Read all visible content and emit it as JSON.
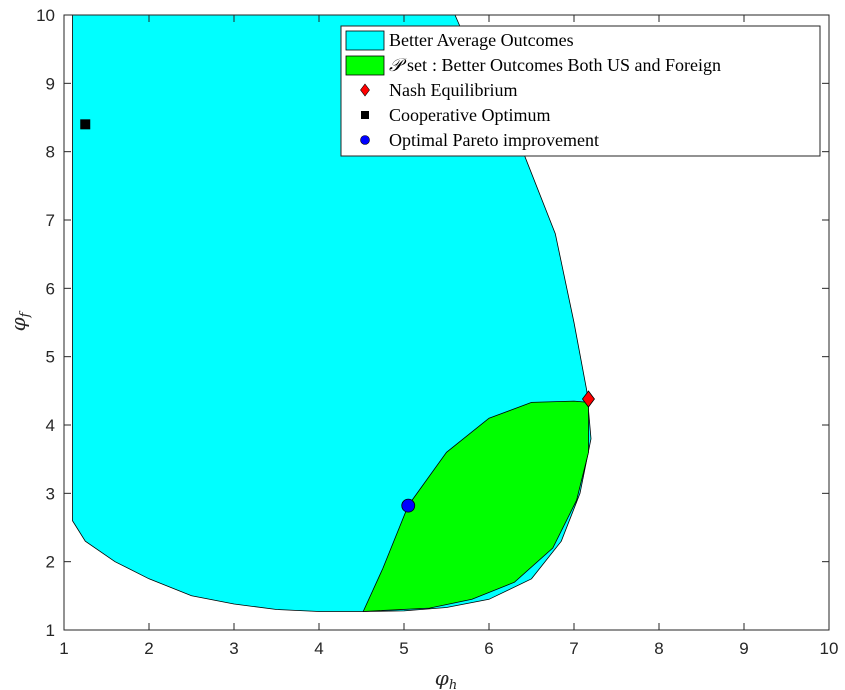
{
  "chart_data": {
    "type": "area",
    "title": "",
    "xlabel": {
      "base": "φ",
      "sub": "h"
    },
    "ylabel": {
      "base": "φ",
      "sub": "f"
    },
    "xlim": [
      1,
      10
    ],
    "ylim": [
      1,
      10
    ],
    "xticks": [
      "1",
      "2",
      "3",
      "4",
      "5",
      "6",
      "7",
      "8",
      "9",
      "10"
    ],
    "yticks": [
      "1",
      "2",
      "3",
      "4",
      "5",
      "6",
      "7",
      "8",
      "9",
      "10"
    ],
    "grid": false,
    "legend_position": "top-right",
    "colors": {
      "better_average": "#00ffff",
      "p_set": "#00ff00",
      "nash": "#ff0000",
      "cooperative": "#000000",
      "pareto": "#0000ff"
    },
    "regions": [
      {
        "name": "Better Average Outcomes",
        "legend_label": "Better Average Outcomes",
        "color": "#00ffff",
        "boundary": [
          [
            1.1,
            10
          ],
          [
            1.1,
            2.6
          ],
          [
            1.25,
            2.3
          ],
          [
            1.6,
            2.0
          ],
          [
            2.0,
            1.75
          ],
          [
            2.5,
            1.5
          ],
          [
            3.0,
            1.38
          ],
          [
            3.5,
            1.3
          ],
          [
            4.0,
            1.27
          ],
          [
            4.5,
            1.27
          ],
          [
            5.0,
            1.28
          ],
          [
            5.5,
            1.33
          ],
          [
            6.0,
            1.45
          ],
          [
            6.5,
            1.75
          ],
          [
            6.85,
            2.3
          ],
          [
            7.07,
            3.0
          ],
          [
            7.2,
            3.8
          ],
          [
            7.15,
            4.5
          ],
          [
            7.0,
            5.5
          ],
          [
            6.78,
            6.8
          ],
          [
            6.4,
            8.0
          ],
          [
            5.95,
            9.0
          ],
          [
            5.6,
            10
          ]
        ]
      },
      {
        "name": "P set",
        "legend_label": ": Better Outcomes Both US and Foreign",
        "legend_math": "𝒫",
        "legend_word": "set",
        "color": "#00ff00",
        "boundary": [
          [
            4.52,
            1.27
          ],
          [
            4.75,
            1.9
          ],
          [
            5.05,
            2.82
          ],
          [
            5.5,
            3.6
          ],
          [
            6.0,
            4.1
          ],
          [
            6.5,
            4.33
          ],
          [
            7.0,
            4.35
          ],
          [
            7.17,
            4.33
          ],
          [
            7.17,
            3.6
          ],
          [
            7.03,
            2.9
          ],
          [
            6.75,
            2.2
          ],
          [
            6.3,
            1.7
          ],
          [
            5.8,
            1.45
          ],
          [
            5.3,
            1.32
          ],
          [
            4.52,
            1.27
          ]
        ]
      }
    ],
    "points": [
      {
        "name": "Nash Equilibrium",
        "x": 7.17,
        "y": 4.38,
        "marker": "diamond",
        "color": "#ff0000"
      },
      {
        "name": "Cooperative Optimum",
        "x": 1.25,
        "y": 8.4,
        "marker": "square",
        "color": "#000000"
      },
      {
        "name": "Optimal Pareto improvement",
        "x": 5.05,
        "y": 2.82,
        "marker": "circle",
        "color": "#0000ff"
      }
    ]
  }
}
